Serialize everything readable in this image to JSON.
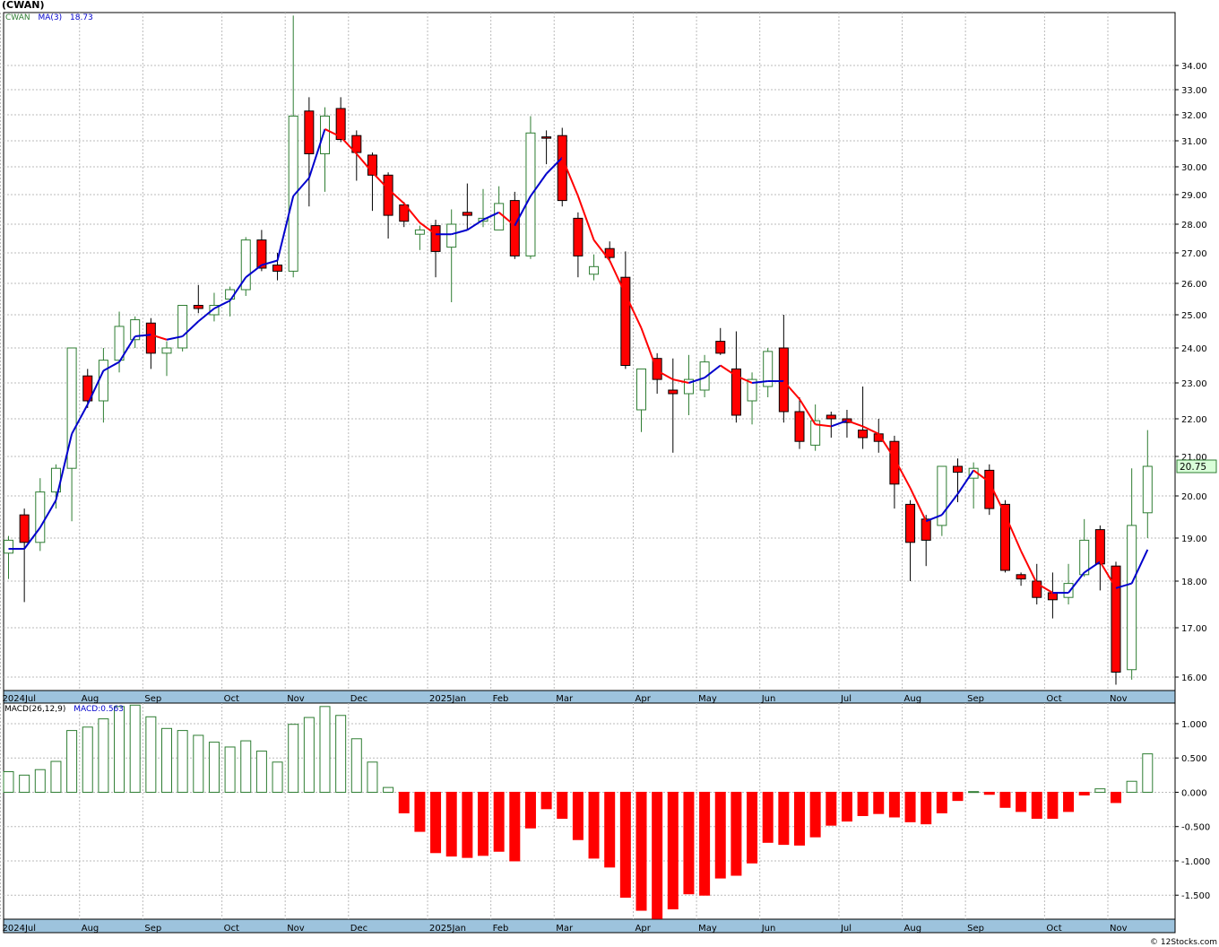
{
  "header": {
    "ticker": "(CWAN)",
    "price_legend_symbol": "CWAN",
    "ma_label": "MA(3)",
    "ma_value": "18.73",
    "macd_label": "MACD(26,12,9)",
    "macd_value_label": "MACD:0.563",
    "last_price": "20.75",
    "credit": "© 12Stocks.com"
  },
  "colors": {
    "up": "#2e7d32",
    "down": "#ff0000",
    "ma_rising": "#0000cc",
    "ma_falling": "#ff0000",
    "grid": "#bbbbbb",
    "axis_strip": "#9dc3dd",
    "price_box": "#d9ffd9"
  },
  "chart_data": [
    {
      "type": "candlestick",
      "title": "(CWAN)",
      "interval": "weekly",
      "ylim": [
        15.75,
        35.8
      ],
      "yticks": [
        "35.00",
        "34.00",
        "33.00",
        "32.00",
        "31.00",
        "30.00",
        "29.00",
        "28.00",
        "27.00",
        "26.00",
        "25.00",
        "24.00",
        "23.00",
        "22.00",
        "21.00",
        "20.00",
        "19.00",
        "18.00",
        "17.00",
        "16.00"
      ],
      "x_labels": [
        "2024Jul",
        "Aug",
        "Sep",
        "Oct",
        "Nov",
        "Dec",
        "2025Jan",
        "Feb",
        "Mar",
        "Apr",
        "May",
        "Jun",
        "Jul",
        "Aug",
        "Sep",
        "Oct",
        "Nov"
      ],
      "x_label_weeks": [
        0,
        5,
        9,
        14,
        18,
        22,
        27,
        31,
        35,
        40,
        44,
        48,
        53,
        57,
        61,
        66,
        70
      ],
      "ohlc": [
        [
          18.65,
          19.05,
          18.05,
          18.95
        ],
        [
          19.55,
          19.7,
          17.55,
          18.9
        ],
        [
          18.9,
          20.45,
          18.7,
          20.1
        ],
        [
          20.1,
          20.8,
          19.7,
          20.7
        ],
        [
          20.7,
          24.0,
          19.4,
          24.0
        ],
        [
          23.2,
          23.4,
          22.3,
          22.5
        ],
        [
          22.5,
          24.0,
          21.9,
          23.65
        ],
        [
          23.65,
          25.1,
          23.3,
          24.65
        ],
        [
          24.25,
          24.95,
          24.0,
          24.85
        ],
        [
          24.75,
          24.9,
          23.4,
          23.85
        ],
        [
          23.85,
          24.2,
          23.2,
          24.0
        ],
        [
          24.0,
          25.3,
          23.9,
          25.3
        ],
        [
          25.3,
          25.95,
          25.05,
          25.2
        ],
        [
          25.0,
          25.7,
          24.8,
          25.3
        ],
        [
          25.5,
          25.9,
          24.95,
          25.8
        ],
        [
          25.8,
          27.55,
          25.6,
          27.45
        ],
        [
          27.45,
          27.8,
          26.4,
          26.5
        ],
        [
          26.6,
          27.0,
          26.1,
          26.4
        ],
        [
          26.4,
          36.1,
          26.2,
          31.95
        ],
        [
          32.15,
          32.7,
          28.6,
          30.5
        ],
        [
          30.5,
          32.3,
          29.1,
          31.95
        ],
        [
          32.25,
          32.7,
          30.95,
          31.05
        ],
        [
          31.2,
          31.4,
          29.5,
          30.55
        ],
        [
          30.45,
          30.55,
          28.45,
          29.7
        ],
        [
          29.7,
          29.8,
          27.5,
          28.3
        ],
        [
          28.65,
          28.75,
          27.9,
          28.1
        ],
        [
          27.65,
          27.95,
          27.1,
          27.8
        ],
        [
          27.95,
          28.15,
          26.2,
          27.05
        ],
        [
          27.2,
          28.5,
          25.4,
          28.0
        ],
        [
          28.4,
          29.4,
          27.8,
          28.3
        ],
        [
          28.1,
          29.2,
          27.9,
          28.2
        ],
        [
          27.8,
          29.3,
          27.8,
          28.7
        ],
        [
          28.8,
          29.1,
          26.8,
          26.9
        ],
        [
          26.9,
          31.95,
          26.8,
          31.3
        ],
        [
          31.15,
          31.4,
          30.1,
          31.1
        ],
        [
          31.2,
          31.5,
          28.6,
          28.8
        ],
        [
          28.2,
          28.4,
          26.2,
          26.9
        ],
        [
          26.3,
          26.95,
          26.1,
          26.55
        ],
        [
          27.15,
          27.4,
          26.7,
          26.85
        ],
        [
          26.2,
          27.05,
          23.4,
          23.5
        ],
        [
          22.25,
          23.4,
          21.65,
          23.4
        ],
        [
          23.7,
          23.85,
          22.7,
          23.1
        ],
        [
          22.8,
          23.7,
          21.1,
          22.7
        ],
        [
          22.7,
          23.8,
          22.1,
          23.1
        ],
        [
          22.8,
          23.8,
          22.6,
          23.6
        ],
        [
          24.2,
          24.6,
          23.8,
          23.85
        ],
        [
          23.4,
          24.5,
          21.9,
          22.1
        ],
        [
          22.5,
          23.3,
          21.85,
          23.1
        ],
        [
          22.9,
          24.0,
          22.6,
          23.9
        ],
        [
          24.0,
          25.0,
          21.9,
          22.2
        ],
        [
          22.2,
          22.6,
          21.2,
          21.4
        ],
        [
          21.3,
          22.4,
          21.15,
          21.95
        ],
        [
          22.1,
          22.2,
          21.5,
          22.0
        ],
        [
          22.0,
          22.25,
          21.5,
          21.9
        ],
        [
          21.7,
          22.9,
          21.2,
          21.5
        ],
        [
          21.6,
          22.0,
          21.1,
          21.4
        ],
        [
          21.4,
          21.55,
          19.7,
          20.3
        ],
        [
          19.8,
          19.9,
          18.0,
          18.9
        ],
        [
          19.45,
          19.55,
          18.35,
          18.95
        ],
        [
          19.3,
          20.75,
          19.05,
          20.75
        ],
        [
          20.75,
          20.95,
          19.85,
          20.6
        ],
        [
          20.45,
          20.85,
          19.7,
          20.7
        ],
        [
          20.65,
          20.8,
          19.55,
          19.7
        ],
        [
          19.8,
          19.9,
          18.2,
          18.25
        ],
        [
          18.15,
          18.2,
          17.9,
          18.05
        ],
        [
          18.0,
          18.4,
          17.5,
          17.65
        ],
        [
          17.75,
          18.2,
          17.2,
          17.6
        ],
        [
          17.65,
          18.4,
          17.5,
          17.95
        ],
        [
          18.15,
          19.45,
          18.1,
          18.95
        ],
        [
          19.2,
          19.3,
          17.8,
          18.4
        ],
        [
          18.35,
          18.45,
          15.85,
          16.1
        ],
        [
          16.15,
          20.7,
          15.95,
          19.3
        ],
        [
          19.6,
          21.7,
          19.0,
          20.75
        ]
      ],
      "ma": [
        18.75,
        18.75,
        19.25,
        19.9,
        21.6,
        22.4,
        23.35,
        23.6,
        24.35,
        24.4,
        24.25,
        24.35,
        24.8,
        25.2,
        25.45,
        26.2,
        26.6,
        26.75,
        28.95,
        29.6,
        31.45,
        31.15,
        30.5,
        29.8,
        29.2,
        28.7,
        28.05,
        27.65,
        27.65,
        27.8,
        28.15,
        28.4,
        27.95,
        28.95,
        29.75,
        30.35,
        28.95,
        27.45,
        26.75,
        25.65,
        24.6,
        23.35,
        23.1,
        23.0,
        23.15,
        23.5,
        23.2,
        23.0,
        23.05,
        23.05,
        22.55,
        21.85,
        21.8,
        21.95,
        21.8,
        21.6,
        20.95,
        20.2,
        19.4,
        19.55,
        20.05,
        20.65,
        20.35,
        19.55,
        18.7,
        17.95,
        17.75,
        17.75,
        18.2,
        18.45,
        17.85,
        17.95,
        18.73
      ],
      "ma_label": "MA(3)"
    },
    {
      "type": "bar",
      "title": "MACD(26,12,9)",
      "ylim": [
        -1.85,
        1.3
      ],
      "yticks": [
        "1.000",
        "0.500",
        "0.000",
        "-0.500",
        "-1.000",
        "-1.500"
      ],
      "values": [
        0.3,
        0.25,
        0.33,
        0.45,
        0.9,
        0.95,
        1.07,
        1.25,
        1.27,
        1.1,
        0.93,
        0.9,
        0.83,
        0.73,
        0.66,
        0.75,
        0.6,
        0.44,
        0.99,
        1.09,
        1.25,
        1.12,
        0.78,
        0.44,
        0.07,
        -0.3,
        -0.57,
        -0.88,
        -0.93,
        -0.95,
        -0.92,
        -0.86,
        -1.0,
        -0.52,
        -0.24,
        -0.38,
        -0.69,
        -0.96,
        -1.09,
        -1.53,
        -1.72,
        -1.84,
        -1.7,
        -1.48,
        -1.5,
        -1.25,
        -1.21,
        -1.03,
        -0.73,
        -0.76,
        -0.77,
        -0.65,
        -0.48,
        -0.42,
        -0.34,
        -0.31,
        -0.36,
        -0.43,
        -0.46,
        -0.3,
        -0.12,
        0.01,
        -0.03,
        -0.22,
        -0.28,
        -0.38,
        -0.38,
        -0.28,
        -0.04,
        0.05,
        -0.15,
        0.16,
        0.56
      ]
    }
  ]
}
